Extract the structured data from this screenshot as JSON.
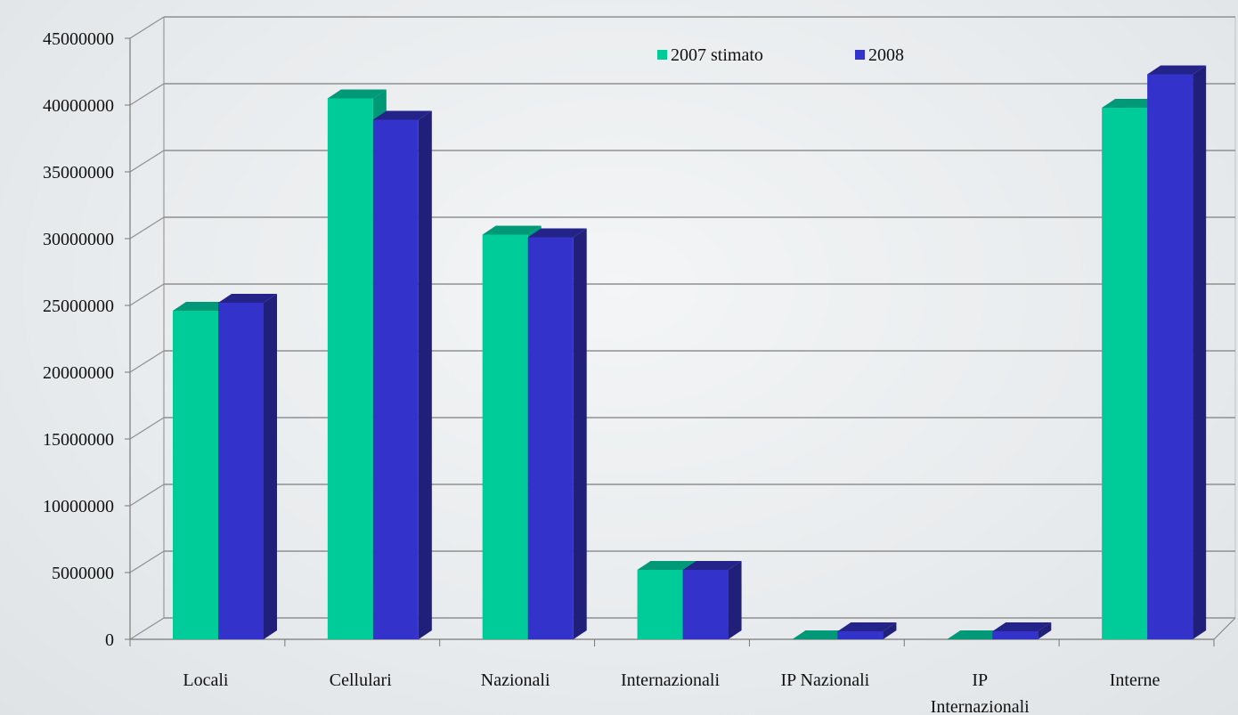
{
  "chart_data": {
    "type": "bar",
    "title": "",
    "xlabel": "",
    "ylabel": "",
    "categories": [
      "Locali",
      "Cellulari",
      "Nazionali",
      "Internazionali",
      "IP Nazionali",
      "IP Internazionali",
      "Interne"
    ],
    "category_lines": [
      [
        "Locali"
      ],
      [
        "Cellulari"
      ],
      [
        "Nazionali"
      ],
      [
        "Internazionali"
      ],
      [
        "IP Nazionali"
      ],
      [
        "IP",
        "Internazionali"
      ],
      [
        "Interne"
      ]
    ],
    "series": [
      {
        "name": "2007 stimato",
        "color": "#00cc99",
        "top_color": "#009977",
        "values": [
          24600000,
          40500000,
          30300000,
          5200000,
          0,
          0,
          39800000
        ]
      },
      {
        "name": "2008",
        "color": "#3333cc",
        "top_color": "#23238a",
        "side_color": "#20207a",
        "values": [
          25200000,
          38900000,
          30100000,
          5200000,
          600000,
          600000,
          42300000
        ]
      }
    ],
    "yticks": [
      "0",
      "5000000",
      "10000000",
      "15000000",
      "20000000",
      "25000000",
      "30000000",
      "35000000",
      "40000000",
      "45000000"
    ],
    "ylim": [
      0,
      45000000
    ],
    "grid": true,
    "legend_position": "top-right"
  }
}
